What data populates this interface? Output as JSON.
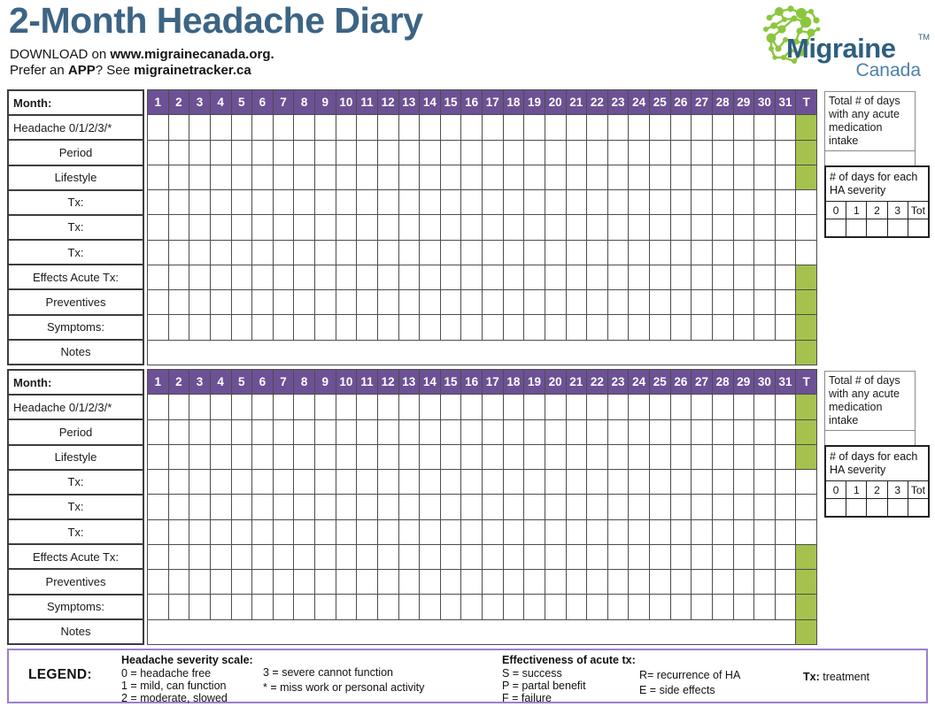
{
  "header": {
    "title": "2-Month Headache Diary",
    "subtitle1_text": "DOWNLOAD on ",
    "subtitle1_bold": "www.migrainecanada.org.",
    "subtitle2_text1": "Prefer an ",
    "subtitle2_bold1": "APP",
    "subtitle2_text2": "? See ",
    "subtitle2_bold2": "migrainetracker.ca"
  },
  "logo": {
    "brand_top": "Migraine",
    "trademark": "TM",
    "brand_bottom": "Canada"
  },
  "table": {
    "month_label": "Month:",
    "days": [
      "1",
      "2",
      "3",
      "4",
      "5",
      "6",
      "7",
      "8",
      "9",
      "10",
      "11",
      "12",
      "13",
      "14",
      "15",
      "16",
      "17",
      "18",
      "19",
      "20",
      "21",
      "22",
      "23",
      "24",
      "25",
      "26",
      "27",
      "28",
      "29",
      "30",
      "31"
    ],
    "total_label": "T",
    "rows": [
      {
        "label": "Headache 0/1/2/3/*",
        "align": "left",
        "t_green": true,
        "merged": false
      },
      {
        "label": "Period",
        "align": "center",
        "t_green": true,
        "merged": false
      },
      {
        "label": "Lifestyle",
        "align": "center",
        "t_green": true,
        "merged": false
      },
      {
        "label": "Tx:",
        "align": "center",
        "t_green": false,
        "merged": false
      },
      {
        "label": "Tx:",
        "align": "center",
        "t_green": false,
        "merged": false
      },
      {
        "label": "Tx:",
        "align": "center",
        "t_green": false,
        "merged": false
      },
      {
        "label": "Effects Acute Tx:",
        "align": "center",
        "t_green": true,
        "merged": false
      },
      {
        "label": "Preventives",
        "align": "center",
        "t_green": true,
        "merged": false
      },
      {
        "label": "Symptoms:",
        "align": "center",
        "t_green": true,
        "merged": false
      },
      {
        "label": "Notes",
        "align": "center",
        "t_green": true,
        "merged": true
      }
    ]
  },
  "side_boxes": {
    "acute_box_text": "Total # of days with any acute medication intake",
    "severity_box_title": "# of days for each HA severity",
    "severity_columns": [
      "0",
      "1",
      "2",
      "3",
      "Tot"
    ]
  },
  "legend": {
    "label": "LEGEND:",
    "severity_title": "Headache severity scale:",
    "severity_col1": [
      "0 = headache free",
      "1 = mild, can function",
      "2 = moderate, slowed"
    ],
    "severity_col2": [
      "3 = severe cannot function",
      "* = miss work or personal activity"
    ],
    "effectiveness_title": "Effectiveness of acute tx:",
    "effectiveness_col1": [
      "S = success",
      "P = partal benefit",
      "F = failure"
    ],
    "effectiveness_col2": [
      "R= recurrence of HA",
      "E = side effects"
    ],
    "tx_bold": "Tx:",
    "tx_rest": " treatment"
  },
  "colors": {
    "purple_header": "#6c5195",
    "green_cell": "#a5c24e",
    "title_blue": "#3c6484",
    "logo_green": "#8cc63f",
    "logo_blue_dark": "#2e5e80",
    "logo_blue_light": "#4d80aa",
    "legend_border": "#9d7fce",
    "grid_line": "#4d4d4d"
  }
}
